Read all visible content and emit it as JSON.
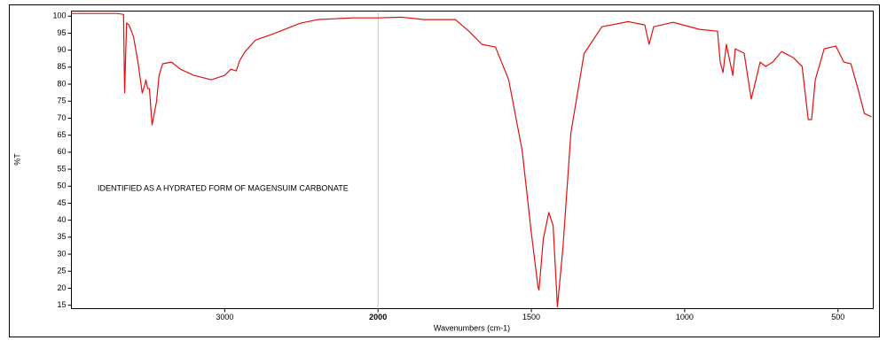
{
  "chart_data": {
    "type": "line",
    "y_label": "%T",
    "x_label": "Wavenumbers (cm-1)",
    "annotation": "IDENTIFIED AS A HYDRATED FORM OF MAGENSUIM CARBONATE",
    "x_scale_break": 2000,
    "x_scale_ratio": 2,
    "xlim": [
      4000,
      385
    ],
    "ylim": [
      14,
      101.5
    ],
    "xticks": [
      3000,
      2000,
      1500,
      1000,
      500
    ],
    "yticks": [
      15,
      20,
      25,
      30,
      35,
      40,
      45,
      50,
      55,
      60,
      65,
      70,
      75,
      80,
      85,
      90,
      95,
      100
    ],
    "x_grid_at_break": true,
    "series": [
      {
        "color": "#e01010",
        "x": [
          4000,
          3700,
          3660,
          3653,
          3640,
          3624,
          3595,
          3566,
          3538,
          3520,
          3514,
          3503,
          3491,
          3474,
          3445,
          3428,
          3405,
          3347,
          3289,
          3202,
          3087,
          3000,
          2960,
          2925,
          2902,
          2867,
          2798,
          2682,
          2566,
          2509,
          2393,
          2162,
          2000,
          1922,
          1849,
          1748,
          1704,
          1661,
          1617,
          1574,
          1530,
          1501,
          1478,
          1475,
          1461,
          1443,
          1429,
          1415,
          1397,
          1371,
          1328,
          1270,
          1183,
          1130,
          1116,
          1101,
          1038,
          951,
          893,
          884,
          875,
          864,
          852,
          843,
          835,
          806,
          783,
          771,
          754,
          736,
          713,
          684,
          646,
          617,
          597,
          586,
          574,
          545,
          507,
          481,
          458,
          435,
          414,
          391
        ],
        "values": [
          100.8,
          100.8,
          100.5,
          77.5,
          98,
          97.4,
          94,
          86.5,
          77.4,
          80,
          81.3,
          78.7,
          78.7,
          68,
          74.8,
          82.6,
          86,
          86.5,
          84.4,
          82.6,
          81.3,
          82.6,
          84.4,
          83.9,
          87,
          89.6,
          93,
          94.8,
          96.9,
          97.9,
          99,
          99.5,
          99.5,
          99.7,
          99,
          99,
          95.6,
          91.7,
          90.9,
          81.3,
          60.5,
          37,
          20.2,
          19.5,
          34.5,
          42.3,
          38.4,
          14.5,
          31.9,
          65.7,
          89,
          96.9,
          98.4,
          97.4,
          91.7,
          96.9,
          98.2,
          96.1,
          95.6,
          86.5,
          83.4,
          91.7,
          86.5,
          82.6,
          90.4,
          89.1,
          75.6,
          80,
          86.5,
          85.2,
          86.5,
          89.6,
          87.8,
          85.2,
          69.6,
          69.6,
          81.3,
          90.4,
          91.2,
          86.5,
          86,
          78.7,
          71.4,
          70.4
        ]
      }
    ]
  }
}
